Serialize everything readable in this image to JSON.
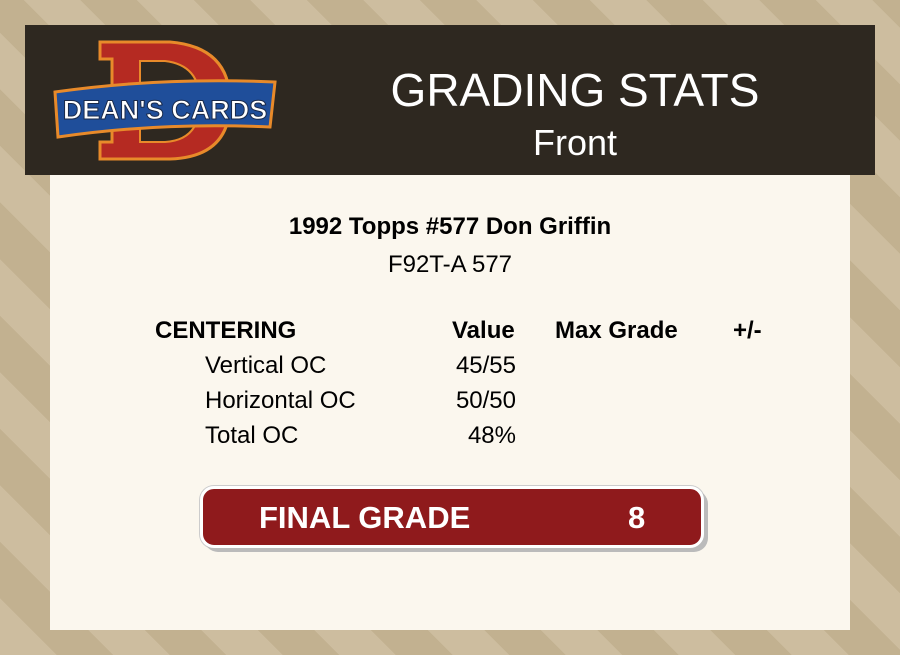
{
  "header": {
    "logo_text": "DEAN'S CARDS",
    "title": "GRADING STATS",
    "subtitle": "Front"
  },
  "card": {
    "name": "1992 Topps #577 Don Griffin",
    "code": "F92T-A 577"
  },
  "table": {
    "headers": {
      "section": "CENTERING",
      "value": "Value",
      "max_grade": "Max Grade",
      "diff": "+/-"
    },
    "rows": [
      {
        "label": "Vertical OC",
        "value": "45/55"
      },
      {
        "label": "Horizontal OC",
        "value": "50/50"
      },
      {
        "label": "Total OC",
        "value": "48%"
      }
    ]
  },
  "final": {
    "label": "FINAL GRADE",
    "value": "8"
  },
  "colors": {
    "header_bg": "#2e2820",
    "panel_bg": "#fbf7ee",
    "final_bg": "#8f1a1c"
  }
}
